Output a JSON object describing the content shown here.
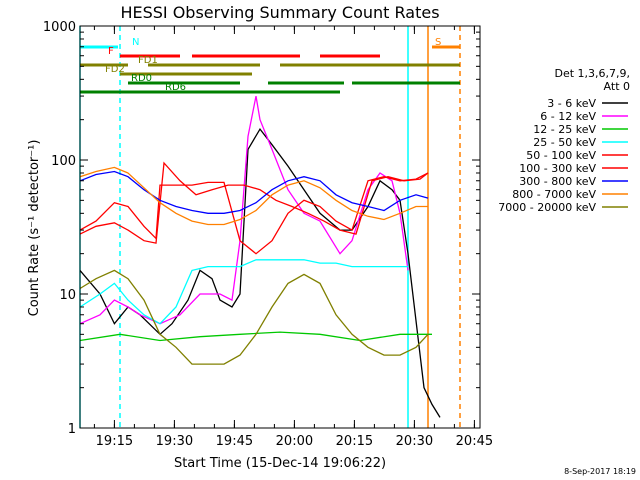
{
  "chart_data": {
    "type": "line",
    "title": "HESSI Observing Summary Count Rates",
    "xlabel": "Start Time (15-Dec-14 19:06:22)",
    "ylabel": "Count Rate (s⁻¹ detector⁻¹)",
    "yscale": "log",
    "ylim": [
      1,
      1000
    ],
    "xlim_minutes_after_19_06_22": [
      0,
      100
    ],
    "x_ticks": [
      "19:15",
      "19:30",
      "19:45",
      "20:00",
      "20:15",
      "20:30",
      "20:45"
    ],
    "x_tick_minutes": [
      8.6,
      23.6,
      38.6,
      53.6,
      68.6,
      83.6,
      98.6
    ],
    "y_ticks": [
      "1",
      "10",
      "100",
      "1000"
    ],
    "y_tick_values": [
      1,
      10,
      100,
      1000
    ],
    "legend_position": "right",
    "legend_header": [
      "Det 1,3,6,7,9,",
      "Att 0"
    ],
    "date_stamp": "8-Sep-2017 18:19",
    "series": [
      {
        "name": "3 - 6 keV",
        "color": "#000000",
        "x": [
          0,
          5,
          8.6,
          12,
          15,
          20,
          23,
          27,
          30,
          33,
          35,
          38,
          40,
          42,
          45,
          48,
          52,
          56,
          60,
          65,
          68,
          72,
          75,
          78,
          80,
          82,
          86,
          88,
          90
        ],
        "y": [
          15,
          10,
          6,
          8,
          7,
          5,
          6,
          9,
          15,
          13,
          9,
          8,
          10,
          120,
          170,
          130,
          90,
          60,
          40,
          30,
          30,
          45,
          70,
          60,
          50,
          20,
          2,
          1.5,
          1.2
        ]
      },
      {
        "name": "6 - 12 keV",
        "color": "#ff00ff",
        "x": [
          0,
          5,
          8.6,
          12,
          15,
          20,
          25,
          30,
          35,
          38,
          40,
          42,
          44,
          45,
          48,
          52,
          56,
          60,
          65,
          68,
          72,
          75,
          78,
          80,
          82
        ],
        "y": [
          6,
          7,
          9,
          8,
          7,
          6,
          7,
          10,
          10,
          9,
          25,
          150,
          300,
          200,
          120,
          60,
          40,
          35,
          20,
          25,
          60,
          80,
          70,
          40,
          15
        ]
      },
      {
        "name": "12 - 25 keV",
        "color": "#00c800",
        "x": [
          0,
          10,
          20,
          30,
          40,
          50,
          60,
          70,
          80,
          85,
          88
        ],
        "y": [
          4.5,
          5,
          4.5,
          4.8,
          5,
          5.2,
          5,
          4.5,
          5,
          5,
          5
        ]
      },
      {
        "name": "25 - 50 keV",
        "color": "#00ffff",
        "x": [
          0,
          5,
          8.6,
          12,
          16,
          20,
          24,
          28,
          32,
          36,
          40,
          44,
          48,
          52,
          56,
          60,
          64,
          68,
          72,
          76,
          80,
          82
        ],
        "y": [
          8,
          10,
          12,
          9,
          7,
          6,
          8,
          15,
          16,
          16,
          16,
          18,
          18,
          18,
          18,
          17,
          17,
          16,
          16,
          16,
          16,
          16
        ]
      },
      {
        "name": "50 - 100 keV",
        "color": "#ff0000",
        "x": [
          0,
          4,
          8.6,
          12,
          16,
          19,
          20,
          24,
          28,
          32,
          36,
          40,
          44,
          48,
          52,
          56,
          60,
          64,
          68,
          72,
          76,
          80,
          84,
          87
        ],
        "y": [
          30,
          35,
          48,
          45,
          32,
          26,
          65,
          65,
          65,
          68,
          68,
          25,
          20,
          25,
          40,
          50,
          45,
          35,
          30,
          70,
          75,
          70,
          72,
          80
        ]
      },
      {
        "name": "100 - 300 keV",
        "color": "#ff0000",
        "x": [
          0,
          4,
          8.6,
          12,
          16,
          19,
          21,
          25,
          29,
          33,
          37,
          41,
          45,
          49,
          53,
          57,
          61,
          65,
          69,
          73,
          77,
          81,
          85,
          87
        ],
        "y": [
          28,
          32,
          34,
          30,
          25,
          24,
          95,
          70,
          55,
          60,
          65,
          65,
          60,
          50,
          45,
          40,
          35,
          30,
          28,
          70,
          75,
          70,
          72,
          80
        ]
      },
      {
        "name": "300 - 800 keV",
        "color": "#0000ff",
        "x": [
          0,
          4,
          8.6,
          12,
          16,
          20,
          24,
          28,
          32,
          36,
          40,
          44,
          48,
          52,
          56,
          60,
          64,
          68,
          72,
          76,
          80,
          84,
          87
        ],
        "y": [
          70,
          78,
          82,
          75,
          60,
          50,
          45,
          42,
          40,
          40,
          42,
          48,
          60,
          70,
          75,
          70,
          55,
          48,
          45,
          42,
          50,
          55,
          52
        ]
      },
      {
        "name": "800 - 7000 keV",
        "color": "#ff8000",
        "x": [
          0,
          4,
          8.6,
          12,
          16,
          20,
          24,
          28,
          32,
          36,
          40,
          44,
          48,
          52,
          56,
          60,
          64,
          68,
          72,
          76,
          80,
          84,
          87
        ],
        "y": [
          75,
          82,
          88,
          80,
          62,
          48,
          40,
          35,
          33,
          33,
          36,
          42,
          55,
          65,
          70,
          62,
          50,
          42,
          38,
          36,
          40,
          45,
          45
        ]
      },
      {
        "name": "7000 - 20000 keV",
        "color": "#808000",
        "x": [
          0,
          4,
          8.6,
          12,
          16,
          20,
          24,
          28,
          32,
          36,
          40,
          44,
          48,
          52,
          56,
          60,
          64,
          68,
          72,
          76,
          80,
          84,
          87
        ],
        "y": [
          11,
          13,
          15,
          13,
          9,
          5,
          4,
          3,
          3,
          3,
          3.5,
          5,
          8,
          12,
          14,
          12,
          7,
          5,
          4,
          3.5,
          3.5,
          4,
          5
        ]
      }
    ],
    "flags": [
      {
        "label": "N",
        "color": "#00ffff",
        "segments": [
          [
            0,
            9.5
          ]
        ],
        "level": 0
      },
      {
        "label": "S",
        "color": "#ff8000",
        "segments": [
          [
            88,
            95
          ]
        ],
        "level": 0
      },
      {
        "label": "F",
        "color": "#ff0000",
        "segments": [
          [
            10,
            25
          ],
          [
            28,
            55
          ],
          [
            60,
            75
          ]
        ],
        "level": 1
      },
      {
        "label": "FD1",
        "color": "#808000",
        "segments": [
          [
            0,
            12
          ],
          [
            17,
            45
          ],
          [
            50,
            95
          ]
        ],
        "level": 2
      },
      {
        "label": "FD2",
        "color": "#808000",
        "segments": [
          [
            10,
            43
          ]
        ],
        "level": 3
      },
      {
        "label": "RD0",
        "color": "#008000",
        "segments": [
          [
            12,
            40
          ],
          [
            47,
            66
          ],
          [
            68,
            95
          ]
        ],
        "level": 4
      },
      {
        "label": "RD6",
        "color": "#008000",
        "segments": [
          [
            0,
            20
          ],
          [
            20,
            65
          ]
        ],
        "level": 5
      }
    ],
    "vertical_lines": [
      {
        "x": 0,
        "color": "#00ffff",
        "style": "solid"
      },
      {
        "x": 10,
        "color": "#00ffff",
        "style": "dashed"
      },
      {
        "x": 82,
        "color": "#00ffff",
        "style": "solid"
      },
      {
        "x": 87,
        "color": "#ff8000",
        "style": "solid"
      },
      {
        "x": 95,
        "color": "#ff8000",
        "style": "dashed"
      }
    ]
  }
}
